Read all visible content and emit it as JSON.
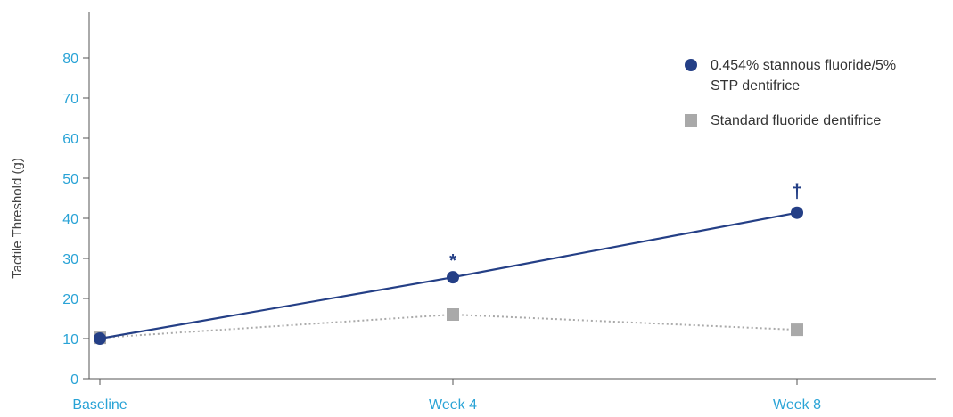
{
  "chart_data": {
    "type": "line",
    "title": "",
    "xlabel": "",
    "ylabel": "Tactile Threshold (g)",
    "categories": [
      "Baseline",
      "Week 4",
      "Week 8"
    ],
    "ylim": [
      0,
      80
    ],
    "yticks": [
      0,
      10,
      20,
      30,
      40,
      50,
      60,
      70,
      80
    ],
    "grid": false,
    "legend_position": "top-right",
    "series": [
      {
        "name": "0.454% stannous fluoride/5% STP dentifrice",
        "legend_lines": [
          "0.454% stannous fluoride/5%",
          "STP dentifrice"
        ],
        "values": [
          10,
          25.3,
          41.4
        ],
        "color": "#243f86",
        "marker": "circle",
        "line_style": "solid",
        "annotations": [
          "",
          "*",
          "†"
        ]
      },
      {
        "name": "Standard fluoride dentifrice",
        "legend_lines": [
          "Standard fluoride dentifrice"
        ],
        "values": [
          10.2,
          16,
          12.2
        ],
        "color": "#a9a9a9",
        "marker": "square",
        "line_style": "dotted",
        "annotations": [
          "",
          "",
          ""
        ]
      }
    ]
  },
  "colors": {
    "tick_label": "#29a3d6",
    "axis_title": "#444444",
    "axis_line": "#555555",
    "legend_text": "#333333"
  }
}
